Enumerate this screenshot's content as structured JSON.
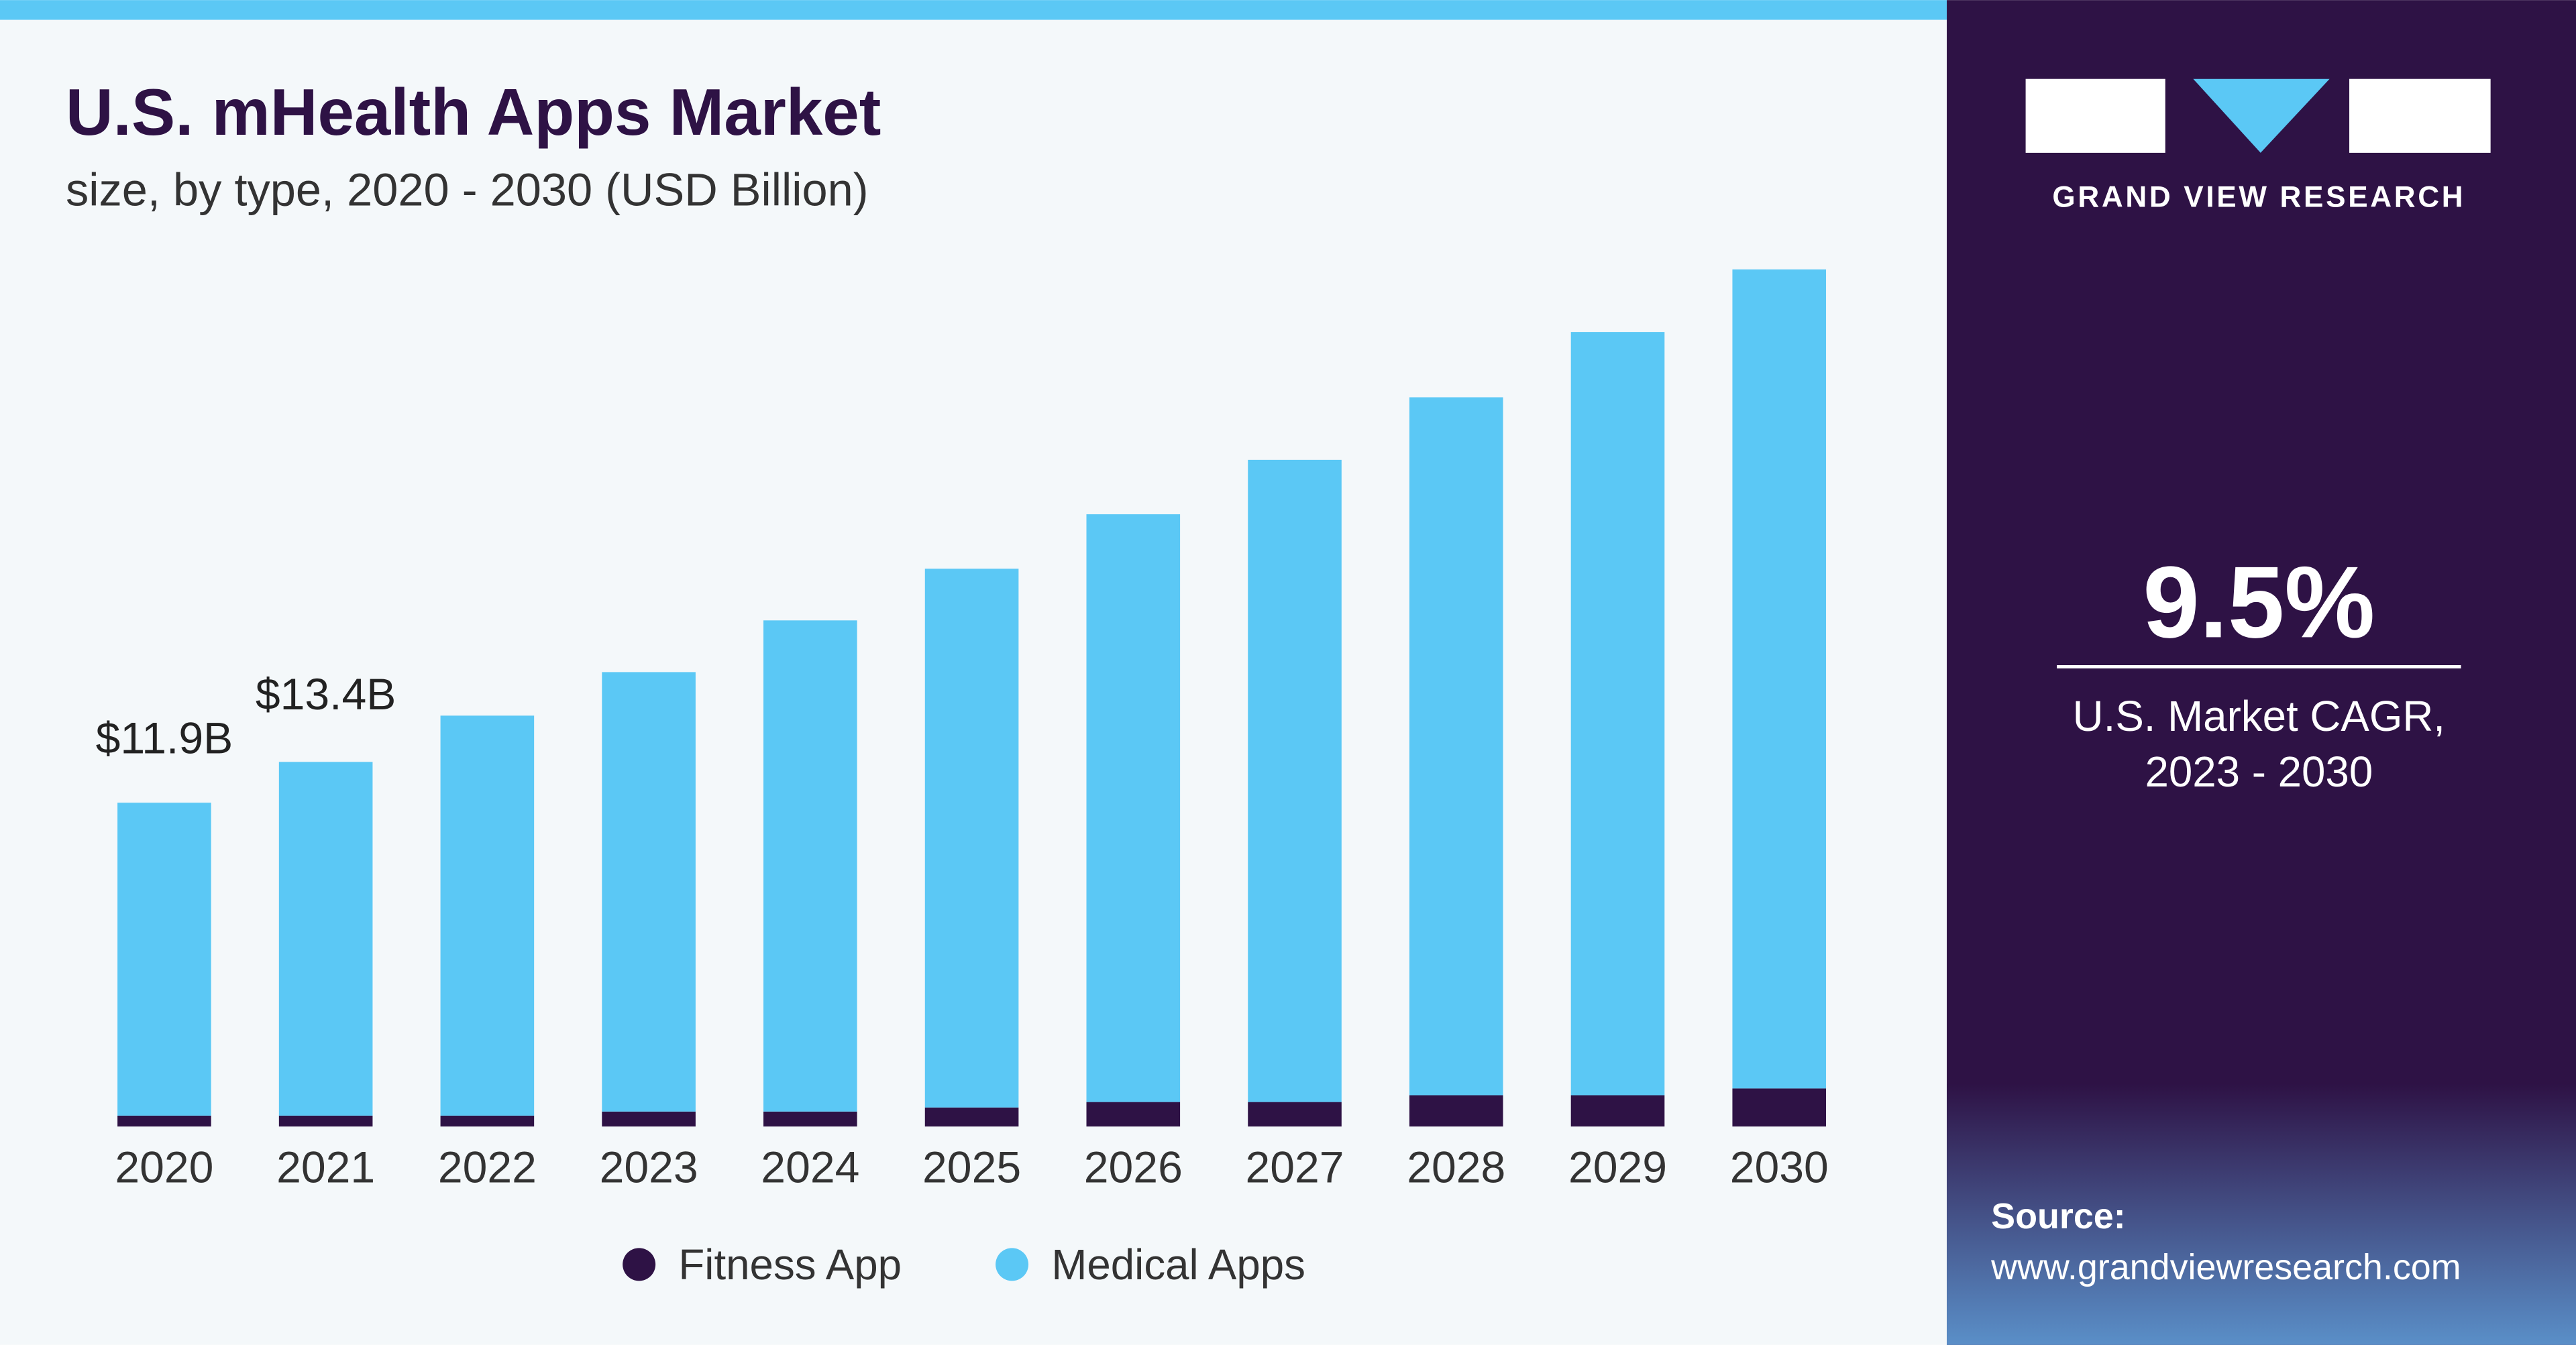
{
  "chart_data": {
    "type": "stacked_bar",
    "title": "U.S. mHealth Apps Market",
    "subtitle": "size, by type, 2020 - 2030 (USD Billion)",
    "categories": [
      "2020",
      "2021",
      "2022",
      "2023",
      "2024",
      "2025",
      "2026",
      "2027",
      "2028",
      "2029",
      "2030"
    ],
    "series": [
      {
        "name": "Fitness App",
        "color": "#2e1245",
        "values": [
          0.4,
          0.4,
          0.4,
          0.55,
          0.55,
          0.7,
          0.9,
          0.9,
          1.15,
          1.15,
          1.4
        ]
      },
      {
        "name": "Medical Apps",
        "color": "#5bc8f5",
        "values": [
          11.5,
          13.0,
          14.7,
          16.15,
          18.05,
          19.8,
          21.6,
          23.6,
          25.65,
          28.05,
          30.1
        ]
      }
    ],
    "total_labels": [
      "$11.9B",
      "$13.4B"
    ]
  },
  "side_panel": {
    "brand": "GRAND VIEW RESEARCH",
    "cagr": "9.5%",
    "cagr_label_1": "U.S. Market CAGR,",
    "cagr_label_2": "2023 - 2030",
    "source_label": "Source:",
    "source_url": "www.grandviewresearch.com"
  }
}
